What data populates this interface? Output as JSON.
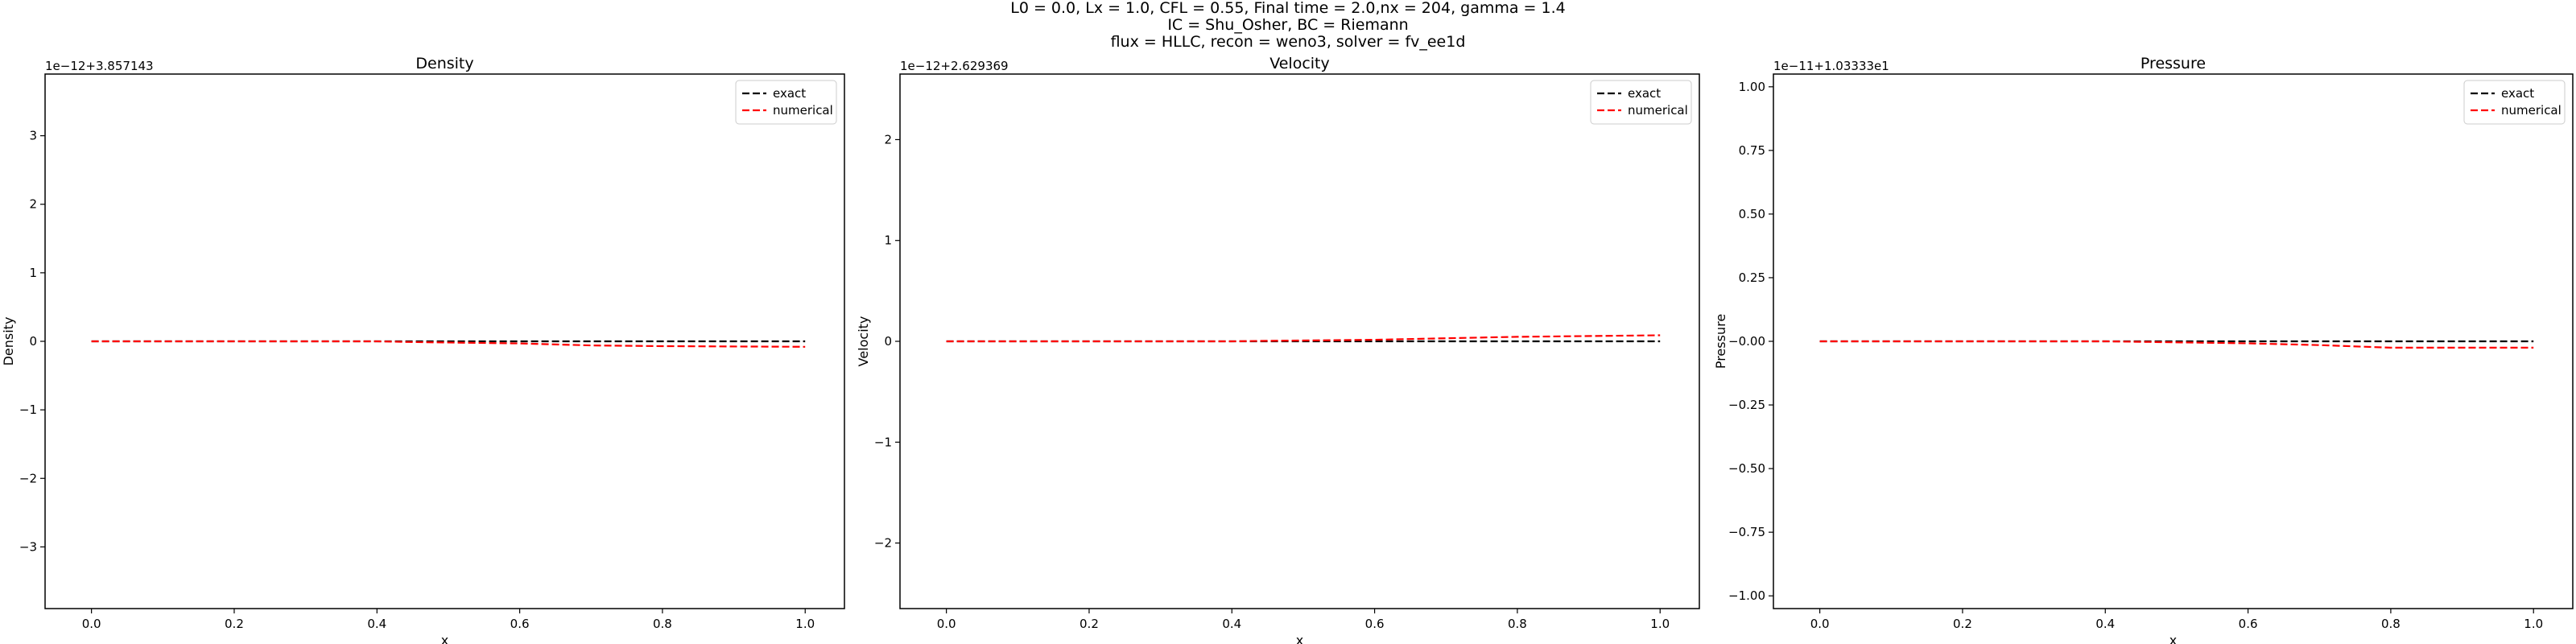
{
  "suptitle": {
    "line1": "L0 = 0.0, Lx = 1.0, CFL = 0.55, Final time = 2.0,nx = 204, gamma = 1.4",
    "line2": "IC = Shu_Osher, BC = Riemann",
    "line3": "flux = HLLC, recon = weno3, solver = fv_ee1d"
  },
  "colors": {
    "exact": "#000000",
    "numerical": "#ff0000"
  },
  "chart_data": [
    {
      "type": "line",
      "title": "Density",
      "xlabel": "x",
      "ylabel": "Density",
      "offset_text": "1e−12+3.857143",
      "xlim": [
        -0.065,
        1.055
      ],
      "ylim": [
        -3.9,
        3.9
      ],
      "xticks": [
        0.0,
        0.2,
        0.4,
        0.6,
        0.8,
        1.0
      ],
      "xtick_labels": [
        "0.0",
        "0.2",
        "0.4",
        "0.6",
        "0.8",
        "1.0"
      ],
      "yticks": [
        3,
        2,
        1,
        0,
        -1,
        -2,
        -3
      ],
      "ytick_labels": [
        "3",
        "2",
        "1",
        "0",
        "−1",
        "−2",
        "−3"
      ],
      "grid": false,
      "legend": "upper right",
      "series": [
        {
          "name": "exact",
          "style": "dashed",
          "color": "#000000",
          "x": [
            0.0,
            0.2,
            0.4,
            0.45,
            0.6,
            0.7,
            0.8,
            1.0
          ],
          "y": [
            0.0,
            0.0,
            0.0,
            0.0,
            0.0,
            0.0,
            0.0,
            0.0
          ]
        },
        {
          "name": "numerical",
          "style": "dashed",
          "color": "#ff0000",
          "x": [
            0.0,
            0.2,
            0.4,
            0.45,
            0.6,
            0.7,
            0.8,
            1.0
          ],
          "y": [
            0.0,
            0.0,
            0.0,
            -0.01,
            -0.03,
            -0.06,
            -0.07,
            -0.08
          ]
        }
      ]
    },
    {
      "type": "line",
      "title": "Velocity",
      "xlabel": "x",
      "ylabel": "Velocity",
      "offset_text": "1e−12+2.629369",
      "xlim": [
        -0.065,
        1.055
      ],
      "ylim": [
        -2.65,
        2.65
      ],
      "xticks": [
        0.0,
        0.2,
        0.4,
        0.6,
        0.8,
        1.0
      ],
      "xtick_labels": [
        "0.0",
        "0.2",
        "0.4",
        "0.6",
        "0.8",
        "1.0"
      ],
      "yticks": [
        2,
        1,
        0,
        -1,
        -2
      ],
      "ytick_labels": [
        "2",
        "1",
        "0",
        "−1",
        "−2"
      ],
      "grid": false,
      "legend": "upper right",
      "series": [
        {
          "name": "exact",
          "style": "dashed",
          "color": "#000000",
          "x": [
            0.0,
            0.2,
            0.4,
            0.45,
            0.6,
            0.7,
            0.8,
            1.0
          ],
          "y": [
            0.0,
            0.0,
            0.0,
            0.0,
            0.0,
            0.0,
            0.0,
            0.0
          ]
        },
        {
          "name": "numerical",
          "style": "dashed",
          "color": "#ff0000",
          "x": [
            0.0,
            0.2,
            0.4,
            0.45,
            0.6,
            0.7,
            0.8,
            1.0
          ],
          "y": [
            0.0,
            0.0,
            0.0,
            0.005,
            0.015,
            0.03,
            0.045,
            0.06
          ]
        }
      ]
    },
    {
      "type": "line",
      "title": "Pressure",
      "xlabel": "x",
      "ylabel": "Pressure",
      "offset_text": "1e−11+1.03333e1",
      "xlim": [
        -0.065,
        1.055
      ],
      "ylim": [
        -1.05,
        1.05
      ],
      "xticks": [
        0.0,
        0.2,
        0.4,
        0.6,
        0.8,
        1.0
      ],
      "xtick_labels": [
        "0.0",
        "0.2",
        "0.4",
        "0.6",
        "0.8",
        "1.0"
      ],
      "yticks": [
        1.0,
        0.75,
        0.5,
        0.25,
        0.0,
        -0.25,
        -0.5,
        -0.75,
        -1.0
      ],
      "ytick_labels": [
        "1.00",
        "0.75",
        "0.50",
        "0.25",
        "−0.00",
        "−0.25",
        "−0.50",
        "−0.75",
        "−1.00"
      ],
      "grid": false,
      "legend": "upper right",
      "series": [
        {
          "name": "exact",
          "style": "dashed",
          "color": "#000000",
          "x": [
            0.0,
            0.2,
            0.4,
            0.45,
            0.6,
            0.7,
            0.8,
            1.0
          ],
          "y": [
            0.0,
            0.0,
            0.0,
            0.0,
            0.0,
            0.0,
            0.0,
            0.0
          ]
        },
        {
          "name": "numerical",
          "style": "dashed",
          "color": "#ff0000",
          "x": [
            0.0,
            0.2,
            0.4,
            0.45,
            0.6,
            0.7,
            0.8,
            1.0
          ],
          "y": [
            0.0,
            0.0,
            0.0,
            -0.002,
            -0.008,
            -0.015,
            -0.025,
            -0.025
          ]
        }
      ]
    }
  ]
}
